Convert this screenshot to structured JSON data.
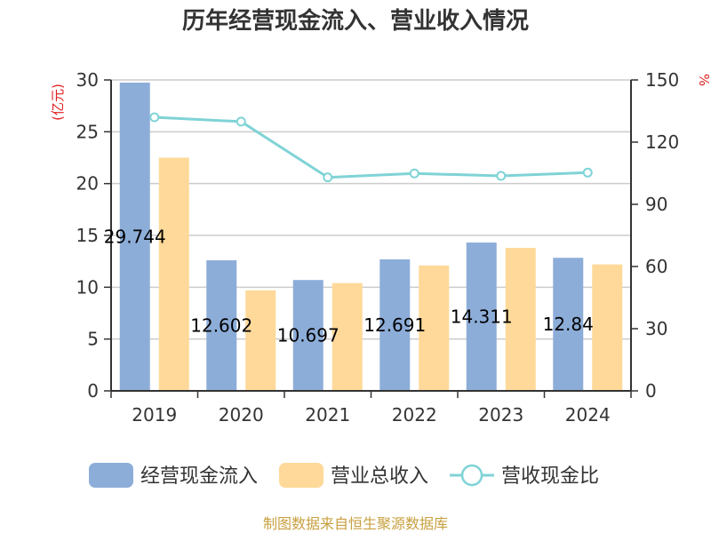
{
  "chart_data": {
    "type": "bar",
    "title": "历年经营现金流入、营业收入情况",
    "categories": [
      "2019",
      "2020",
      "2021",
      "2022",
      "2023",
      "2024"
    ],
    "series": [
      {
        "name": "经营现金流入",
        "axis": "left",
        "kind": "bar",
        "color": "#8dadd9",
        "values": [
          29.744,
          12.602,
          10.697,
          12.691,
          14.311,
          12.84
        ]
      },
      {
        "name": "营业总收入",
        "axis": "left",
        "kind": "bar",
        "color": "#fed999",
        "values": [
          22.5,
          9.7,
          10.4,
          12.1,
          13.8,
          12.2
        ]
      },
      {
        "name": "营收现金比",
        "axis": "right",
        "kind": "line",
        "color": "#7fd3d6",
        "values": [
          132,
          129.9,
          103,
          104.9,
          103.7,
          105.3
        ]
      }
    ],
    "data_labels": [
      "29.744",
      "12.602",
      "10.697",
      "12.691",
      "14.311",
      "12.84"
    ],
    "y_left": {
      "label": "(亿元)",
      "ticks": [
        0,
        5,
        10,
        15,
        20,
        25,
        30
      ],
      "ylim": [
        0,
        30
      ]
    },
    "y_right": {
      "label": "%",
      "ticks": [
        0,
        30,
        60,
        90,
        120,
        150
      ],
      "ylim": [
        0,
        150
      ]
    },
    "grid": true,
    "legend_position": "bottom"
  },
  "source": "制图数据来自恒生聚源数据库"
}
